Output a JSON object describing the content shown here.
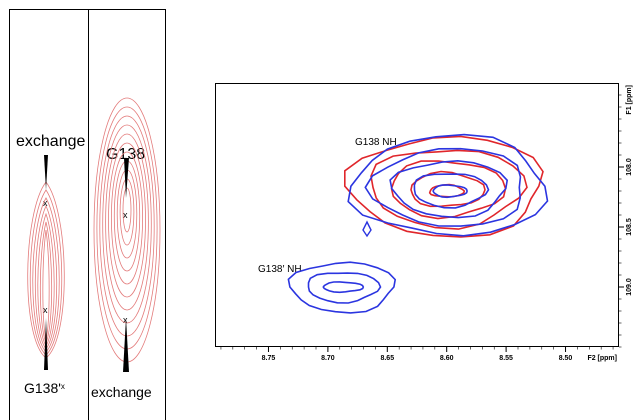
{
  "strips": {
    "left": {
      "top_label": "exchange",
      "bottom_label": "G138'",
      "bottom_mark": "x"
    },
    "right": {
      "top_label": "G138",
      "bottom_label": "exchange"
    },
    "cross_mark": "x"
  },
  "spectrum": {
    "peak_labels": [
      "G138 NH",
      "G138′ NH"
    ],
    "x_axis_title": "F2 [ppm]",
    "y_axis_title": "F1 [ppm]"
  },
  "chart_data": {
    "type": "contour",
    "x_axis": {
      "label": "F2 [ppm]",
      "ticks": [
        8.75,
        8.7,
        8.65,
        8.6,
        8.55,
        8.5
      ],
      "range": [
        8.795,
        8.455
      ],
      "reversed": true
    },
    "y_axis": {
      "label": "F1 [ppm]",
      "ticks": [
        108.0,
        108.5,
        109.0
      ],
      "range": [
        107.3,
        109.5
      ],
      "reversed": true
    },
    "series": [
      {
        "color": "#e0262b",
        "peaks": [
          {
            "x": 8.6,
            "y": 108.2
          }
        ]
      },
      {
        "color": "#2b35e0",
        "peaks": [
          {
            "x": 8.6,
            "y": 108.2
          },
          {
            "x": 8.69,
            "y": 109.0
          }
        ]
      }
    ]
  }
}
